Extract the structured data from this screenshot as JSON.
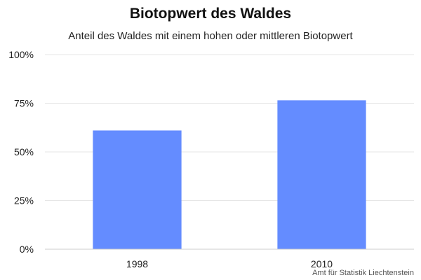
{
  "chart_data": {
    "type": "bar",
    "title": "Biotopwert des Waldes",
    "subtitle": "Anteil des Waldes mit einem hohen oder mittleren Biotopwert",
    "categories": [
      "1998",
      "2010"
    ],
    "values": [
      61,
      76.5
    ],
    "ylim": [
      0,
      100
    ],
    "yticks": [
      0,
      25,
      50,
      75,
      100
    ],
    "ytick_labels": [
      "0%",
      "25%",
      "50%",
      "75%",
      "100%"
    ],
    "grid": true,
    "legend": "none",
    "bar_color": "#648cff",
    "grid_color": "#e6e6e6",
    "axis_color": "#cccccc",
    "source": "Amt für Statistik Liechtenstein"
  }
}
